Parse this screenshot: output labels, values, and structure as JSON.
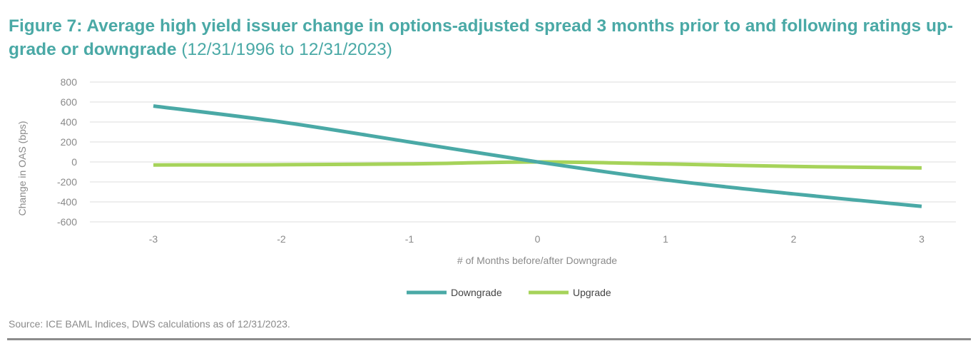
{
  "title": {
    "main": "Figure 7: Average high yield issuer change in options-adjusted spread 3 months prior to and following ratings up-grade or downgrade",
    "sub": " (12/31/1996 to 12/31/2023)"
  },
  "source": "Source: ICE BAML Indices, DWS calculations as of 12/31/2023.",
  "chart_data": {
    "type": "line",
    "title": "Figure 7: Average high yield issuer change in options-adjusted spread 3 months prior to and following ratings up-grade or downgrade",
    "xlabel": "# of Months before/after Downgrade",
    "ylabel": "Change in OAS (bps)",
    "x": [
      -3,
      -2,
      -1,
      0,
      1,
      2,
      3
    ],
    "x_tick_labels": [
      "-3",
      "-2",
      "-1",
      "0",
      "1",
      "2",
      "3"
    ],
    "ylim": [
      -600,
      800
    ],
    "y_ticks": [
      800,
      600,
      400,
      200,
      0,
      -200,
      -400,
      -600
    ],
    "grid": true,
    "legend_position": "bottom-center",
    "series": [
      {
        "name": "Downgrade",
        "color": "#4aa9a6",
        "values": [
          560,
          400,
          200,
          0,
          -180,
          -320,
          -445
        ]
      },
      {
        "name": "Upgrade",
        "color": "#a6d35a",
        "values": [
          -30,
          -28,
          -20,
          0,
          -20,
          -45,
          -60
        ]
      }
    ]
  }
}
